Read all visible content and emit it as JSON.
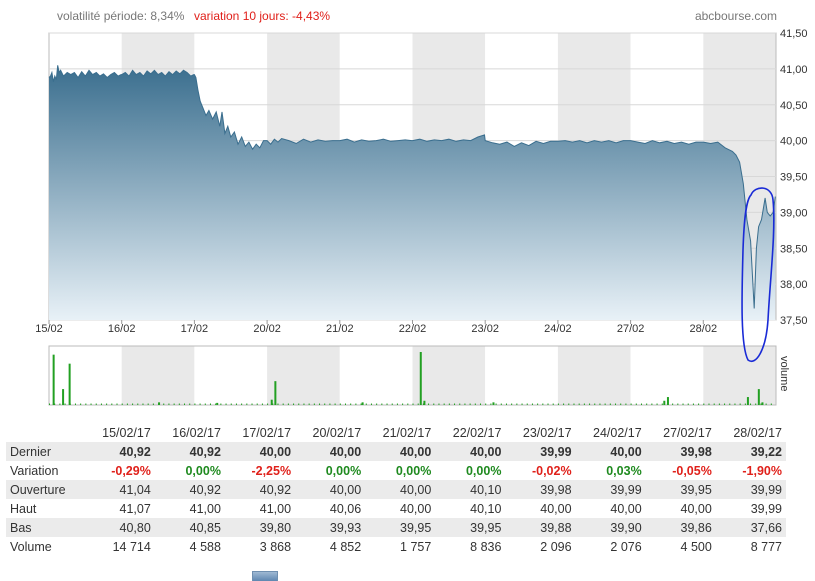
{
  "header": {
    "volatility": "volatilité période: 8,34%",
    "variation": "variation 10 jours: -4,43%",
    "brand": "abcbourse.com"
  },
  "colors": {
    "area_top": "#3a6e8e",
    "area_bottom": "#e8f1f7",
    "volume_bar": "#22a022",
    "annotation": "#1a2bd6",
    "positive": "#1f8a1f",
    "negative": "#e0201a"
  },
  "chart_data": {
    "type": "area",
    "price_axis": {
      "min": 37.5,
      "max": 41.5,
      "ticks": [
        "41,50",
        "41,00",
        "40,50",
        "40,00",
        "39,50",
        "39,00",
        "38,50",
        "38,00",
        "37,50"
      ],
      "side": "right"
    },
    "x_tick_labels": [
      "15/02",
      "16/02",
      "17/02",
      "20/02",
      "21/02",
      "22/02",
      "23/02",
      "24/02",
      "27/02",
      "28/02"
    ],
    "volume_axis_label": "volume",
    "grid": true,
    "price_series": [
      [
        0,
        40.88
      ],
      [
        0.02,
        40.9
      ],
      [
        0.04,
        40.95
      ],
      [
        0.06,
        40.82
      ],
      [
        0.08,
        40.9
      ],
      [
        0.1,
        40.85
      ],
      [
        0.12,
        41.05
      ],
      [
        0.14,
        40.95
      ],
      [
        0.16,
        40.98
      ],
      [
        0.2,
        40.9
      ],
      [
        0.25,
        40.95
      ],
      [
        0.3,
        40.92
      ],
      [
        0.35,
        40.95
      ],
      [
        0.4,
        40.88
      ],
      [
        0.45,
        40.96
      ],
      [
        0.5,
        40.9
      ],
      [
        0.55,
        40.98
      ],
      [
        0.6,
        40.92
      ],
      [
        0.65,
        40.95
      ],
      [
        0.7,
        40.9
      ],
      [
        0.75,
        40.93
      ],
      [
        0.8,
        40.88
      ],
      [
        0.85,
        40.92
      ],
      [
        0.9,
        40.95
      ],
      [
        0.95,
        40.9
      ],
      [
        0.99,
        40.92
      ],
      [
        1.0,
        40.92
      ],
      [
        1.05,
        40.95
      ],
      [
        1.1,
        40.9
      ],
      [
        1.15,
        40.98
      ],
      [
        1.2,
        40.92
      ],
      [
        1.25,
        40.95
      ],
      [
        1.3,
        40.9
      ],
      [
        1.35,
        40.97
      ],
      [
        1.4,
        40.93
      ],
      [
        1.45,
        40.98
      ],
      [
        1.5,
        40.92
      ],
      [
        1.55,
        40.95
      ],
      [
        1.6,
        40.9
      ],
      [
        1.65,
        40.96
      ],
      [
        1.7,
        40.92
      ],
      [
        1.75,
        40.97
      ],
      [
        1.8,
        40.93
      ],
      [
        1.85,
        40.98
      ],
      [
        1.9,
        40.95
      ],
      [
        1.95,
        40.9
      ],
      [
        1.99,
        40.92
      ],
      [
        2.0,
        40.92
      ],
      [
        2.02,
        40.88
      ],
      [
        2.05,
        40.7
      ],
      [
        2.08,
        40.55
      ],
      [
        2.12,
        40.45
      ],
      [
        2.16,
        40.35
      ],
      [
        2.2,
        40.42
      ],
      [
        2.25,
        40.3
      ],
      [
        2.3,
        40.4
      ],
      [
        2.35,
        40.2
      ],
      [
        2.38,
        40.4
      ],
      [
        2.42,
        40.1
      ],
      [
        2.46,
        40.2
      ],
      [
        2.5,
        40.05
      ],
      [
        2.55,
        40.12
      ],
      [
        2.6,
        39.95
      ],
      [
        2.65,
        40.05
      ],
      [
        2.7,
        39.92
      ],
      [
        2.75,
        39.98
      ],
      [
        2.8,
        39.88
      ],
      [
        2.85,
        39.95
      ],
      [
        2.9,
        39.9
      ],
      [
        2.95,
        40.0
      ],
      [
        2.99,
        40.0
      ],
      [
        3.0,
        40.0
      ],
      [
        3.05,
        39.95
      ],
      [
        3.1,
        40.02
      ],
      [
        3.15,
        39.98
      ],
      [
        3.2,
        40.03
      ],
      [
        3.3,
        40.0
      ],
      [
        3.4,
        39.96
      ],
      [
        3.5,
        40.02
      ],
      [
        3.6,
        39.98
      ],
      [
        3.7,
        40.01
      ],
      [
        3.8,
        39.99
      ],
      [
        3.9,
        40.0
      ],
      [
        3.99,
        40.0
      ],
      [
        4.0,
        40.0
      ],
      [
        4.1,
        40.02
      ],
      [
        4.2,
        39.98
      ],
      [
        4.3,
        40.01
      ],
      [
        4.4,
        39.99
      ],
      [
        4.5,
        40.0
      ],
      [
        4.6,
        40.02
      ],
      [
        4.7,
        39.99
      ],
      [
        4.8,
        40.0
      ],
      [
        4.9,
        40.01
      ],
      [
        4.99,
        40.0
      ],
      [
        5.0,
        40.0
      ],
      [
        5.1,
        40.02
      ],
      [
        5.2,
        39.99
      ],
      [
        5.3,
        40.01
      ],
      [
        5.4,
        40.0
      ],
      [
        5.5,
        40.02
      ],
      [
        5.6,
        39.99
      ],
      [
        5.7,
        40.01
      ],
      [
        5.8,
        40.0
      ],
      [
        5.9,
        40.05
      ],
      [
        5.99,
        40.08
      ],
      [
        6.0,
        40.0
      ],
      [
        6.1,
        39.97
      ],
      [
        6.2,
        39.95
      ],
      [
        6.3,
        39.98
      ],
      [
        6.4,
        39.92
      ],
      [
        6.5,
        39.97
      ],
      [
        6.6,
        39.93
      ],
      [
        6.7,
        39.99
      ],
      [
        6.8,
        39.96
      ],
      [
        6.9,
        39.99
      ],
      [
        6.99,
        39.99
      ],
      [
        7.0,
        39.99
      ],
      [
        7.1,
        40.0
      ],
      [
        7.2,
        39.98
      ],
      [
        7.3,
        40.0
      ],
      [
        7.4,
        39.97
      ],
      [
        7.5,
        40.0
      ],
      [
        7.6,
        39.98
      ],
      [
        7.7,
        40.0
      ],
      [
        7.8,
        39.97
      ],
      [
        7.9,
        40.0
      ],
      [
        7.99,
        40.0
      ],
      [
        8.0,
        40.0
      ],
      [
        8.1,
        39.98
      ],
      [
        8.2,
        39.96
      ],
      [
        8.3,
        40.0
      ],
      [
        8.4,
        39.97
      ],
      [
        8.5,
        39.99
      ],
      [
        8.6,
        39.96
      ],
      [
        8.7,
        39.98
      ],
      [
        8.8,
        39.95
      ],
      [
        8.9,
        39.98
      ],
      [
        8.99,
        39.98
      ],
      [
        9.0,
        39.98
      ],
      [
        9.1,
        39.96
      ],
      [
        9.2,
        39.98
      ],
      [
        9.3,
        39.9
      ],
      [
        9.4,
        39.85
      ],
      [
        9.45,
        39.8
      ],
      [
        9.5,
        39.7
      ],
      [
        9.55,
        39.4
      ],
      [
        9.6,
        38.9
      ],
      [
        9.65,
        38.6
      ],
      [
        9.7,
        37.66
      ],
      [
        9.73,
        38.5
      ],
      [
        9.76,
        38.8
      ],
      [
        9.8,
        38.9
      ],
      [
        9.85,
        39.2
      ],
      [
        9.88,
        39.0
      ],
      [
        9.92,
        38.95
      ],
      [
        9.96,
        39.0
      ],
      [
        9.99,
        39.22
      ]
    ],
    "volume_spikes": [
      [
        0.05,
        0.95
      ],
      [
        0.18,
        0.3
      ],
      [
        0.27,
        0.78
      ],
      [
        1.5,
        0.05
      ],
      [
        2.3,
        0.04
      ],
      [
        3.1,
        0.45
      ],
      [
        3.05,
        0.1
      ],
      [
        4.3,
        0.05
      ],
      [
        5.1,
        1.0
      ],
      [
        5.15,
        0.08
      ],
      [
        6.1,
        0.05
      ],
      [
        8.5,
        0.15
      ],
      [
        8.45,
        0.08
      ],
      [
        9.6,
        0.15
      ],
      [
        9.75,
        0.3
      ],
      [
        9.8,
        0.05
      ]
    ]
  },
  "table": {
    "dates": [
      "15/02/17",
      "16/02/17",
      "17/02/17",
      "20/02/17",
      "21/02/17",
      "22/02/17",
      "23/02/17",
      "24/02/17",
      "27/02/17",
      "28/02/17"
    ],
    "rows": {
      "dernier": {
        "label": "Dernier",
        "values": [
          "40,92",
          "40,92",
          "40,00",
          "40,00",
          "40,00",
          "40,00",
          "39,99",
          "40,00",
          "39,98",
          "39,22"
        ]
      },
      "variation": {
        "label": "Variation",
        "values": [
          "-0,29%",
          "0,00%",
          "-2,25%",
          "0,00%",
          "0,00%",
          "0,00%",
          "-0,02%",
          "0,03%",
          "-0,05%",
          "-1,90%"
        ]
      },
      "ouverture": {
        "label": "Ouverture",
        "values": [
          "41,04",
          "40,92",
          "40,92",
          "40,00",
          "40,00",
          "40,10",
          "39,98",
          "39,99",
          "39,95",
          "39,99"
        ]
      },
      "haut": {
        "label": "Haut",
        "values": [
          "41,07",
          "41,00",
          "41,00",
          "40,06",
          "40,00",
          "40,10",
          "40,00",
          "40,00",
          "40,00",
          "39,99"
        ]
      },
      "bas": {
        "label": "Bas",
        "values": [
          "40,80",
          "40,85",
          "39,80",
          "39,93",
          "39,95",
          "39,95",
          "39,88",
          "39,90",
          "39,86",
          "37,66"
        ]
      },
      "volume": {
        "label": "Volume",
        "values": [
          "14 714",
          "4 588",
          "3 868",
          "4 852",
          "1 757",
          "8 836",
          "2 096",
          "2 076",
          "4 500",
          "8 777"
        ]
      }
    }
  }
}
